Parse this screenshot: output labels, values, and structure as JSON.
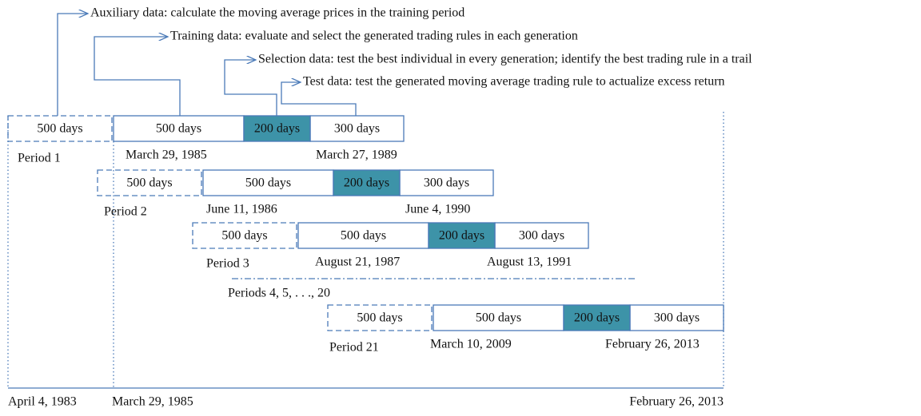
{
  "legend": [
    "Auxiliary data: calculate the moving average prices in the training period",
    "Training data: evaluate and select the generated trading rules in each generation",
    "Selection data: test the best individual in every generation; identify the best trading rule in a trail",
    "Test data: test the generated moving average trading rule to actualize excess return"
  ],
  "periods": [
    {
      "label": "Period 1",
      "segments": [
        "500 days",
        "500 days",
        "200 days",
        "300 days"
      ],
      "start_date": "March 29, 1985",
      "end_date": "March 27, 1989"
    },
    {
      "label": "Period 2",
      "segments": [
        "500 days",
        "500 days",
        "200 days",
        "300 days"
      ],
      "start_date": "June 11, 1986",
      "end_date": "June 4, 1990"
    },
    {
      "label": "Period 3",
      "segments": [
        "500 days",
        "500 days",
        "200 days",
        "300 days"
      ],
      "start_date": "August 21, 1987",
      "end_date": "August 13, 1991"
    },
    {
      "label": "Period 21",
      "segments": [
        "500 days",
        "500 days",
        "200 days",
        "300 days"
      ],
      "start_date": "March 10, 2009",
      "end_date": "February 26, 2013"
    }
  ],
  "periods_note": "Periods 4, 5, . . ., 20",
  "timeline": {
    "start": "April 4, 1983",
    "middle": "March 29, 1985",
    "end": "February 26, 2013"
  }
}
